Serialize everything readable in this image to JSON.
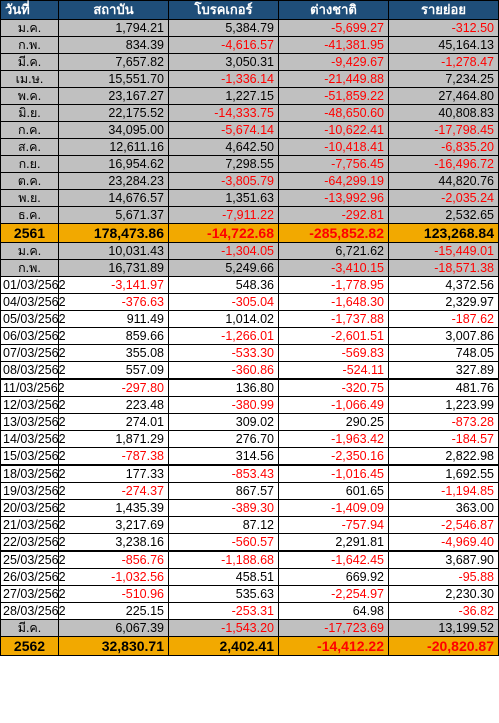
{
  "headers": [
    "วันที่",
    "สถาบัน",
    "โบรคเกอร์",
    "ต่างชาติ",
    "รายย่อย"
  ],
  "rows": [
    {
      "type": "month",
      "label": "ม.ค.",
      "values": [
        "1,794.21",
        "5,384.79",
        "-5,699.27",
        "-312.50"
      ]
    },
    {
      "type": "month",
      "label": "ก.พ.",
      "values": [
        "834.39",
        "-4,616.57",
        "-41,381.95",
        "45,164.13"
      ]
    },
    {
      "type": "month",
      "label": "มี.ค.",
      "values": [
        "7,657.82",
        "3,050.31",
        "-9,429.67",
        "-1,278.47"
      ]
    },
    {
      "type": "month",
      "label": "เม.ษ.",
      "values": [
        "15,551.70",
        "-1,336.14",
        "-21,449.88",
        "7,234.25"
      ]
    },
    {
      "type": "month",
      "label": "พ.ค.",
      "values": [
        "23,167.27",
        "1,227.15",
        "-51,859.22",
        "27,464.80"
      ]
    },
    {
      "type": "month",
      "label": "มิ.ย.",
      "values": [
        "22,175.52",
        "-14,333.75",
        "-48,650.60",
        "40,808.83"
      ]
    },
    {
      "type": "month",
      "label": "ก.ค.",
      "values": [
        "34,095.00",
        "-5,674.14",
        "-10,622.41",
        "-17,798.45"
      ]
    },
    {
      "type": "month",
      "label": "ส.ค.",
      "values": [
        "12,611.16",
        "4,642.50",
        "-10,418.41",
        "-6,835.20"
      ]
    },
    {
      "type": "month",
      "label": "ก.ย.",
      "values": [
        "16,954.62",
        "7,298.55",
        "-7,756.45",
        "-16,496.72"
      ]
    },
    {
      "type": "month",
      "label": "ต.ค.",
      "values": [
        "23,284.23",
        "-3,805.79",
        "-64,299.19",
        "44,820.76"
      ]
    },
    {
      "type": "month",
      "label": "พ.ย.",
      "values": [
        "14,676.57",
        "1,351.63",
        "-13,992.96",
        "-2,035.24"
      ]
    },
    {
      "type": "month",
      "label": "ธ.ค.",
      "values": [
        "5,671.37",
        "-7,911.22",
        "-292.81",
        "2,532.65"
      ]
    },
    {
      "type": "year",
      "label": "2561",
      "values": [
        "178,473.86",
        "-14,722.68",
        "-285,852.82",
        "123,268.84"
      ]
    },
    {
      "type": "month",
      "label": "ม.ค.",
      "values": [
        "10,031.43",
        "-1,304.05",
        "6,721.62",
        "-15,449.01"
      ]
    },
    {
      "type": "month",
      "label": "ก.พ.",
      "values": [
        "16,731.89",
        "5,249.66",
        "-3,410.15",
        "-18,571.38"
      ]
    },
    {
      "type": "day",
      "label": "01/03/2562",
      "values": [
        "-3,141.97",
        "548.36",
        "-1,778.95",
        "4,372.56"
      ]
    },
    {
      "type": "day",
      "label": "04/03/2562",
      "values": [
        "-376.63",
        "-305.04",
        "-1,648.30",
        "2,329.97"
      ]
    },
    {
      "type": "day",
      "label": "05/03/2562",
      "values": [
        "911.49",
        "1,014.02",
        "-1,737.88",
        "-187.62"
      ]
    },
    {
      "type": "day",
      "label": "06/03/2562",
      "values": [
        "859.66",
        "-1,266.01",
        "-2,601.51",
        "3,007.86"
      ]
    },
    {
      "type": "day",
      "label": "07/03/2562",
      "values": [
        "355.08",
        "-533.30",
        "-569.83",
        "748.05"
      ]
    },
    {
      "type": "day",
      "label": "08/03/2562",
      "values": [
        "557.09",
        "-360.86",
        "-524.11",
        "327.89"
      ]
    },
    {
      "type": "day",
      "sep": true,
      "label": "11/03/2562",
      "values": [
        "-297.80",
        "136.80",
        "-320.75",
        "481.76"
      ]
    },
    {
      "type": "day",
      "label": "12/03/2562",
      "values": [
        "223.48",
        "-380.99",
        "-1,066.49",
        "1,223.99"
      ]
    },
    {
      "type": "day",
      "label": "13/03/2562",
      "values": [
        "274.01",
        "309.02",
        "290.25",
        "-873.28"
      ]
    },
    {
      "type": "day",
      "label": "14/03/2562",
      "values": [
        "1,871.29",
        "276.70",
        "-1,963.42",
        "-184.57"
      ]
    },
    {
      "type": "day",
      "label": "15/03/2562",
      "values": [
        "-787.38",
        "314.56",
        "-2,350.16",
        "2,822.98"
      ]
    },
    {
      "type": "day",
      "sep": true,
      "label": "18/03/2562",
      "values": [
        "177.33",
        "-853.43",
        "-1,016.45",
        "1,692.55"
      ]
    },
    {
      "type": "day",
      "label": "19/03/2562",
      "values": [
        "-274.37",
        "867.57",
        "601.65",
        "-1,194.85"
      ]
    },
    {
      "type": "day",
      "label": "20/03/2562",
      "values": [
        "1,435.39",
        "-389.30",
        "-1,409.09",
        "363.00"
      ]
    },
    {
      "type": "day",
      "label": "21/03/2562",
      "values": [
        "3,217.69",
        "87.12",
        "-757.94",
        "-2,546.87"
      ]
    },
    {
      "type": "day",
      "label": "22/03/2562",
      "values": [
        "3,238.16",
        "-560.57",
        "2,291.81",
        "-4,969.40"
      ]
    },
    {
      "type": "day",
      "sep": true,
      "label": "25/03/2562",
      "values": [
        "-856.76",
        "-1,188.68",
        "-1,642.45",
        "3,687.90"
      ]
    },
    {
      "type": "day",
      "label": "26/03/2562",
      "values": [
        "-1,032.56",
        "458.51",
        "669.92",
        "-95.88"
      ]
    },
    {
      "type": "day",
      "label": "27/03/2562",
      "values": [
        "-510.96",
        "535.63",
        "-2,254.97",
        "2,230.30"
      ]
    },
    {
      "type": "day",
      "label": "28/03/2562",
      "values": [
        "225.15",
        "-253.31",
        "64.98",
        "-36.82"
      ]
    },
    {
      "type": "month",
      "label": "มี.ค.",
      "values": [
        "6,067.39",
        "-1,543.20",
        "-17,723.69",
        "13,199.52"
      ]
    },
    {
      "type": "year",
      "label": "2562",
      "values": [
        "32,830.71",
        "2,402.41",
        "-14,412.22",
        "-20,820.87"
      ]
    }
  ],
  "colors": {
    "header_bg": "#1f4e79",
    "header_text": "#ffffff",
    "month_row_bg": "#c0c0c0",
    "year_row_bg": "#f2a900",
    "negative_text": "#ff0000"
  }
}
